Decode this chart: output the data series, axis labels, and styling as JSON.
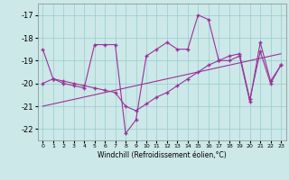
{
  "title": "",
  "xlabel": "Windchill (Refroidissement éolien,°C)",
  "background_color": "#cce8e8",
  "grid_color": "#99cccc",
  "line_color": "#993399",
  "xlim": [
    -0.5,
    23.5
  ],
  "ylim": [
    -22.5,
    -16.5
  ],
  "yticks": [
    -22,
    -21,
    -20,
    -19,
    -18,
    -17
  ],
  "xticks": [
    0,
    1,
    2,
    3,
    4,
    5,
    6,
    7,
    8,
    9,
    10,
    11,
    12,
    13,
    14,
    15,
    16,
    17,
    18,
    19,
    20,
    21,
    22,
    23
  ],
  "series1_y": [
    -18.5,
    -19.8,
    -20.0,
    -20.1,
    -20.2,
    -18.3,
    -18.3,
    -18.3,
    -22.2,
    -21.6,
    -18.8,
    -18.5,
    -18.2,
    -18.5,
    -18.5,
    -17.0,
    -17.2,
    -19.0,
    -19.0,
    -18.8,
    -20.8,
    -18.2,
    -19.9,
    -19.2
  ],
  "series2_y": [
    -20.0,
    -19.8,
    -19.9,
    -20.0,
    -20.1,
    -20.2,
    -20.3,
    -20.4,
    -21.0,
    -21.2,
    -20.9,
    -20.6,
    -20.4,
    -20.1,
    -19.8,
    -19.5,
    -19.2,
    -19.0,
    -18.8,
    -18.7,
    -20.7,
    -18.6,
    -20.0,
    -19.2
  ],
  "trend_x": [
    0,
    23
  ],
  "trend_y": [
    -21.0,
    -18.7
  ]
}
